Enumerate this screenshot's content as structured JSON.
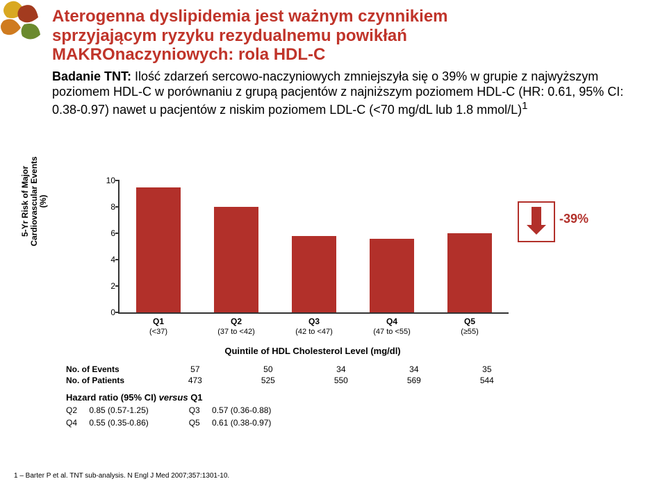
{
  "leaf_colors": [
    "#d9a821",
    "#a33b1f",
    "#cf7b1f",
    "#6b8a2e"
  ],
  "title_color": "#c0342a",
  "title_line1": "Aterogenna dyslipidemia jest ważnym czynnikiem",
  "title_line2": "sprzyjającym ryzyku rezydualnemu powikłań",
  "title_line3": "MAKROnaczyniowych: rola HDL-C",
  "body_lead": "Badanie TNT:",
  "body_rest": " Ilość zdarzeń sercowo-naczyniowych zmniejszyła się o 39% w grupie z najwyższym poziomem HDL-C w porównaniu z grupą pacjentów  z najniższym poziomem HDL-C (HR: 0.61, 95% CI: 0.38-0.97) nawet u pacjentów z niskim poziomem LDL-C (<70 mg/dL lub 1.8 mmol/L)",
  "sup1": "1",
  "chart": {
    "bar_color": "#b2302a",
    "y_ticks": [
      0,
      2,
      4,
      6,
      8,
      10
    ],
    "y_max": 10,
    "y_axis_label": "5-Yr Risk of Major Cardiovascular Events (%)",
    "bars": [
      {
        "label": "Q1",
        "sub": "(<37)",
        "value": 9.5
      },
      {
        "label": "Q2",
        "sub": "(37 to <42)",
        "value": 8.0
      },
      {
        "label": "Q3",
        "sub": "(42 to <47)",
        "value": 5.8
      },
      {
        "label": "Q4",
        "sub": "(47 to <55)",
        "value": 5.6
      },
      {
        "label": "Q5",
        "sub": "(≥55)",
        "value": 6.0
      }
    ],
    "x_title": "Quintile of HDL Cholesterol Level (mg/dl)",
    "delta_label": "-39%"
  },
  "events_row_label": "No. of Events",
  "patients_row_label": "No. of Patients",
  "events": [
    "57",
    "50",
    "34",
    "34",
    "35"
  ],
  "patients": [
    "473",
    "525",
    "550",
    "569",
    "544"
  ],
  "hr_title": "Hazard ratio (95% CI) versus Q1",
  "hr_italic": "versus",
  "hr": [
    {
      "q": "Q2",
      "v": "0.85 (0.57-1.25)"
    },
    {
      "q": "Q3",
      "v": "0.57 (0.36-0.88)"
    },
    {
      "q": "Q4",
      "v": "0.55 (0.35-0.86)"
    },
    {
      "q": "Q5",
      "v": "0.61 (0.38-0.97)"
    }
  ],
  "footnote": "1 – Barter P et al. TNT sub-analysis. N Engl J Med 2007;357:1301-10."
}
